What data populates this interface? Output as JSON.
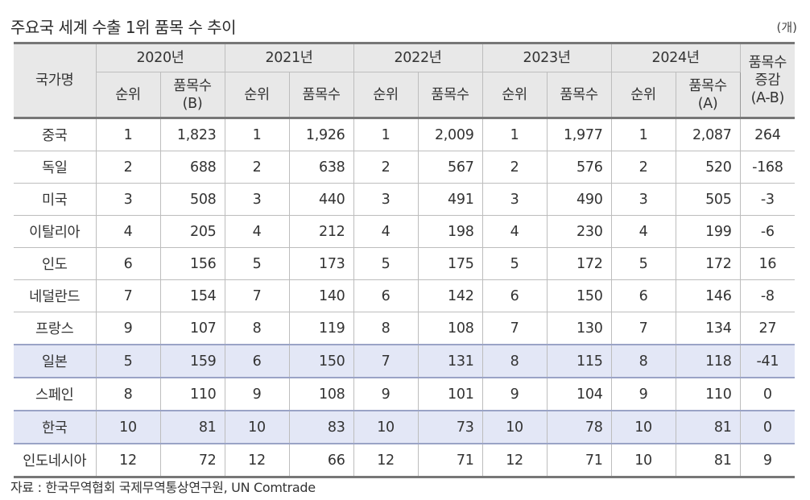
{
  "title": "주요국 세계 수출 1위 품목 수 추이",
  "unit": "(개)",
  "header": {
    "country": "국가명",
    "years": [
      "2020년",
      "2021년",
      "2022년",
      "2023년",
      "2024년"
    ],
    "rank": "순위",
    "items": "품목수",
    "items_b": "품목수\n(B)",
    "items_a": "품목수\n(A)",
    "change": "품목수\n증감\n(A-B)"
  },
  "rows": [
    {
      "country": "중국",
      "values": [
        "1",
        "1,823",
        "1",
        "1,926",
        "1",
        "2,009",
        "1",
        "1,977",
        "1",
        "2,087",
        "264"
      ]
    },
    {
      "country": "독일",
      "values": [
        "2",
        "688",
        "2",
        "638",
        "2",
        "567",
        "2",
        "576",
        "2",
        "520",
        "-168"
      ]
    },
    {
      "country": "미국",
      "values": [
        "3",
        "508",
        "3",
        "440",
        "3",
        "491",
        "3",
        "490",
        "3",
        "505",
        "-3"
      ]
    },
    {
      "country": "이탈리아",
      "values": [
        "4",
        "205",
        "4",
        "212",
        "4",
        "198",
        "4",
        "230",
        "4",
        "199",
        "-6"
      ]
    },
    {
      "country": "인도",
      "values": [
        "6",
        "156",
        "5",
        "173",
        "5",
        "175",
        "5",
        "172",
        "5",
        "172",
        "16"
      ]
    },
    {
      "country": "네덜란드",
      "values": [
        "7",
        "154",
        "7",
        "140",
        "6",
        "142",
        "6",
        "150",
        "6",
        "146",
        "-8"
      ]
    },
    {
      "country": "프랑스",
      "values": [
        "9",
        "107",
        "8",
        "119",
        "8",
        "108",
        "7",
        "130",
        "7",
        "134",
        "27"
      ]
    },
    {
      "country": "일본",
      "highlight": true,
      "values": [
        "5",
        "159",
        "6",
        "150",
        "7",
        "131",
        "8",
        "115",
        "8",
        "118",
        "-41"
      ]
    },
    {
      "country": "스페인",
      "values": [
        "8",
        "110",
        "9",
        "108",
        "9",
        "101",
        "9",
        "104",
        "9",
        "110",
        "0"
      ]
    },
    {
      "country": "한국",
      "highlight": true,
      "values": [
        "10",
        "81",
        "10",
        "83",
        "10",
        "73",
        "10",
        "78",
        "10",
        "81",
        "0"
      ]
    },
    {
      "country": "인도네시아",
      "values": [
        "12",
        "72",
        "12",
        "66",
        "12",
        "71",
        "12",
        "71",
        "10",
        "81",
        "9"
      ]
    }
  ],
  "source": "자료 : 한국무역협회 국제무역통상연구원, UN Comtrade"
}
